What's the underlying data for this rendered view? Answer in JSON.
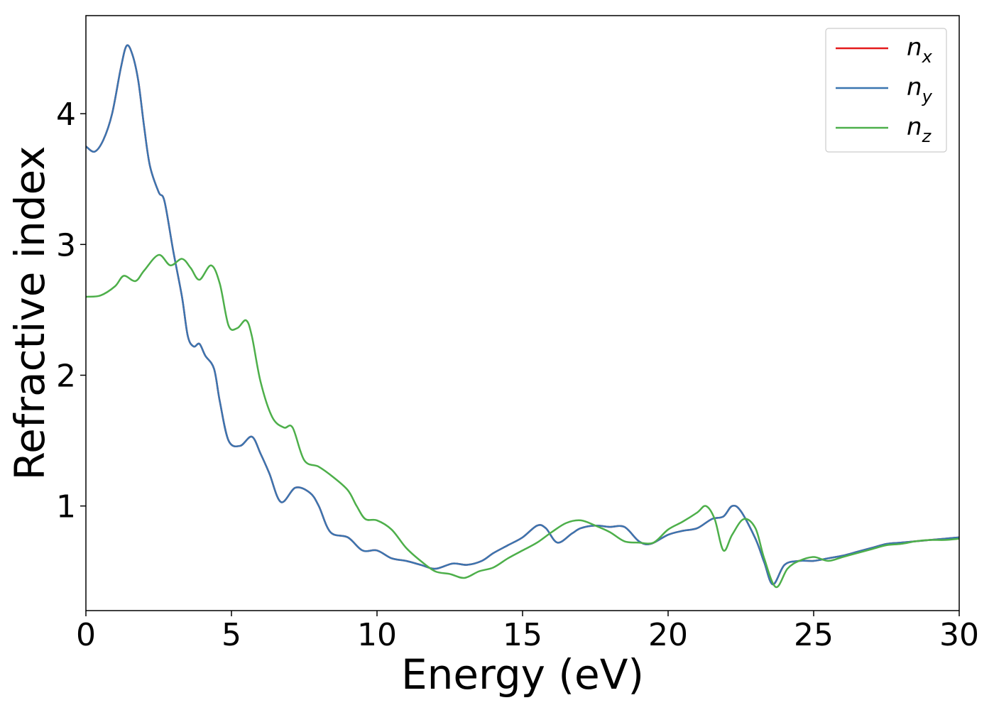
{
  "chart_data": {
    "type": "line",
    "xlabel": "Energy (eV)",
    "ylabel": "Refractive index",
    "xlim": [
      0,
      30
    ],
    "ylim": [
      0.2,
      4.75
    ],
    "xticks": [
      0,
      5,
      10,
      15,
      20,
      25,
      30
    ],
    "xtick_labels": [
      "0",
      "5",
      "10",
      "15",
      "20",
      "25",
      "30"
    ],
    "yticks": [
      1,
      2,
      3,
      4
    ],
    "ytick_labels": [
      "1",
      "2",
      "3",
      "4"
    ],
    "grid": false,
    "legend_position": "top-right",
    "series": [
      {
        "name": "n_x",
        "legend_base": "n",
        "legend_sub": "x",
        "color": "#e41a1c",
        "points": [
          [
            0,
            3.75
          ],
          [
            0.3,
            3.71
          ],
          [
            0.6,
            3.8
          ],
          [
            0.9,
            4.0
          ],
          [
            1.2,
            4.35
          ],
          [
            1.4,
            4.52
          ],
          [
            1.6,
            4.45
          ],
          [
            1.8,
            4.25
          ],
          [
            2.0,
            3.9
          ],
          [
            2.2,
            3.6
          ],
          [
            2.5,
            3.4
          ],
          [
            2.7,
            3.33
          ],
          [
            3.0,
            2.95
          ],
          [
            3.3,
            2.6
          ],
          [
            3.5,
            2.3
          ],
          [
            3.7,
            2.22
          ],
          [
            3.9,
            2.24
          ],
          [
            4.1,
            2.15
          ],
          [
            4.4,
            2.05
          ],
          [
            4.6,
            1.8
          ],
          [
            4.9,
            1.5
          ],
          [
            5.3,
            1.46
          ],
          [
            5.7,
            1.53
          ],
          [
            6.0,
            1.4
          ],
          [
            6.3,
            1.25
          ],
          [
            6.7,
            1.03
          ],
          [
            7.2,
            1.14
          ],
          [
            7.7,
            1.1
          ],
          [
            8.0,
            1.0
          ],
          [
            8.4,
            0.8
          ],
          [
            9.0,
            0.76
          ],
          [
            9.5,
            0.66
          ],
          [
            10.0,
            0.66
          ],
          [
            10.5,
            0.6
          ],
          [
            11.0,
            0.58
          ],
          [
            11.5,
            0.55
          ],
          [
            12.0,
            0.52
          ],
          [
            12.6,
            0.56
          ],
          [
            13.1,
            0.55
          ],
          [
            13.6,
            0.58
          ],
          [
            14.0,
            0.64
          ],
          [
            14.5,
            0.7
          ],
          [
            15.0,
            0.76
          ],
          [
            15.5,
            0.85
          ],
          [
            15.8,
            0.83
          ],
          [
            16.2,
            0.72
          ],
          [
            16.7,
            0.79
          ],
          [
            17.0,
            0.83
          ],
          [
            17.5,
            0.85
          ],
          [
            18.0,
            0.84
          ],
          [
            18.5,
            0.84
          ],
          [
            19.0,
            0.73
          ],
          [
            19.4,
            0.71
          ],
          [
            20.0,
            0.78
          ],
          [
            20.5,
            0.81
          ],
          [
            21.0,
            0.83
          ],
          [
            21.5,
            0.9
          ],
          [
            21.9,
            0.92
          ],
          [
            22.2,
            1.0
          ],
          [
            22.5,
            0.96
          ],
          [
            23.0,
            0.75
          ],
          [
            23.3,
            0.57
          ],
          [
            23.6,
            0.4
          ],
          [
            24.0,
            0.55
          ],
          [
            24.5,
            0.58
          ],
          [
            25.0,
            0.58
          ],
          [
            25.5,
            0.6
          ],
          [
            26.0,
            0.62
          ],
          [
            26.5,
            0.65
          ],
          [
            27.0,
            0.68
          ],
          [
            27.5,
            0.71
          ],
          [
            28.0,
            0.72
          ],
          [
            28.5,
            0.73
          ],
          [
            29.0,
            0.74
          ],
          [
            29.5,
            0.75
          ],
          [
            30.0,
            0.76
          ]
        ]
      },
      {
        "name": "n_y",
        "legend_base": "n",
        "legend_sub": "y",
        "color": "#3a75b0",
        "points": [
          [
            0,
            3.75
          ],
          [
            0.3,
            3.71
          ],
          [
            0.6,
            3.8
          ],
          [
            0.9,
            4.0
          ],
          [
            1.2,
            4.35
          ],
          [
            1.4,
            4.52
          ],
          [
            1.6,
            4.45
          ],
          [
            1.8,
            4.25
          ],
          [
            2.0,
            3.9
          ],
          [
            2.2,
            3.6
          ],
          [
            2.5,
            3.4
          ],
          [
            2.7,
            3.33
          ],
          [
            3.0,
            2.95
          ],
          [
            3.3,
            2.6
          ],
          [
            3.5,
            2.3
          ],
          [
            3.7,
            2.22
          ],
          [
            3.9,
            2.24
          ],
          [
            4.1,
            2.15
          ],
          [
            4.4,
            2.05
          ],
          [
            4.6,
            1.8
          ],
          [
            4.9,
            1.5
          ],
          [
            5.3,
            1.46
          ],
          [
            5.7,
            1.53
          ],
          [
            6.0,
            1.4
          ],
          [
            6.3,
            1.25
          ],
          [
            6.7,
            1.03
          ],
          [
            7.2,
            1.14
          ],
          [
            7.7,
            1.1
          ],
          [
            8.0,
            1.0
          ],
          [
            8.4,
            0.8
          ],
          [
            9.0,
            0.76
          ],
          [
            9.5,
            0.66
          ],
          [
            10.0,
            0.66
          ],
          [
            10.5,
            0.6
          ],
          [
            11.0,
            0.58
          ],
          [
            11.5,
            0.55
          ],
          [
            12.0,
            0.52
          ],
          [
            12.6,
            0.56
          ],
          [
            13.1,
            0.55
          ],
          [
            13.6,
            0.58
          ],
          [
            14.0,
            0.64
          ],
          [
            14.5,
            0.7
          ],
          [
            15.0,
            0.76
          ],
          [
            15.5,
            0.85
          ],
          [
            15.8,
            0.83
          ],
          [
            16.2,
            0.72
          ],
          [
            16.7,
            0.79
          ],
          [
            17.0,
            0.83
          ],
          [
            17.5,
            0.85
          ],
          [
            18.0,
            0.84
          ],
          [
            18.5,
            0.84
          ],
          [
            19.0,
            0.73
          ],
          [
            19.4,
            0.71
          ],
          [
            20.0,
            0.78
          ],
          [
            20.5,
            0.81
          ],
          [
            21.0,
            0.83
          ],
          [
            21.5,
            0.9
          ],
          [
            21.9,
            0.92
          ],
          [
            22.2,
            1.0
          ],
          [
            22.5,
            0.96
          ],
          [
            23.0,
            0.75
          ],
          [
            23.3,
            0.57
          ],
          [
            23.6,
            0.4
          ],
          [
            24.0,
            0.55
          ],
          [
            24.5,
            0.58
          ],
          [
            25.0,
            0.58
          ],
          [
            25.5,
            0.6
          ],
          [
            26.0,
            0.62
          ],
          [
            26.5,
            0.65
          ],
          [
            27.0,
            0.68
          ],
          [
            27.5,
            0.71
          ],
          [
            28.0,
            0.72
          ],
          [
            28.5,
            0.73
          ],
          [
            29.0,
            0.74
          ],
          [
            29.5,
            0.75
          ],
          [
            30.0,
            0.76
          ]
        ]
      },
      {
        "name": "n_z",
        "legend_base": "n",
        "legend_sub": "z",
        "color": "#4daf4a",
        "points": [
          [
            0,
            2.6
          ],
          [
            0.5,
            2.61
          ],
          [
            1.0,
            2.68
          ],
          [
            1.3,
            2.76
          ],
          [
            1.7,
            2.72
          ],
          [
            2.0,
            2.8
          ],
          [
            2.5,
            2.92
          ],
          [
            2.9,
            2.84
          ],
          [
            3.3,
            2.89
          ],
          [
            3.6,
            2.82
          ],
          [
            3.9,
            2.73
          ],
          [
            4.3,
            2.84
          ],
          [
            4.6,
            2.7
          ],
          [
            4.9,
            2.38
          ],
          [
            5.2,
            2.36
          ],
          [
            5.5,
            2.42
          ],
          [
            5.7,
            2.3
          ],
          [
            6.0,
            1.95
          ],
          [
            6.4,
            1.68
          ],
          [
            6.8,
            1.6
          ],
          [
            7.1,
            1.6
          ],
          [
            7.5,
            1.35
          ],
          [
            8.0,
            1.3
          ],
          [
            8.5,
            1.22
          ],
          [
            9.0,
            1.12
          ],
          [
            9.3,
            1.0
          ],
          [
            9.6,
            0.9
          ],
          [
            10.0,
            0.89
          ],
          [
            10.5,
            0.82
          ],
          [
            11.0,
            0.68
          ],
          [
            11.5,
            0.58
          ],
          [
            12.0,
            0.5
          ],
          [
            12.5,
            0.48
          ],
          [
            13.0,
            0.45
          ],
          [
            13.5,
            0.5
          ],
          [
            14.0,
            0.53
          ],
          [
            14.5,
            0.6
          ],
          [
            15.0,
            0.66
          ],
          [
            15.5,
            0.72
          ],
          [
            16.0,
            0.8
          ],
          [
            16.5,
            0.87
          ],
          [
            17.0,
            0.89
          ],
          [
            17.5,
            0.85
          ],
          [
            18.0,
            0.8
          ],
          [
            18.5,
            0.73
          ],
          [
            19.0,
            0.72
          ],
          [
            19.5,
            0.72
          ],
          [
            20.0,
            0.82
          ],
          [
            20.5,
            0.88
          ],
          [
            21.0,
            0.95
          ],
          [
            21.3,
            1.0
          ],
          [
            21.6,
            0.9
          ],
          [
            21.9,
            0.66
          ],
          [
            22.2,
            0.78
          ],
          [
            22.6,
            0.9
          ],
          [
            23.0,
            0.83
          ],
          [
            23.3,
            0.6
          ],
          [
            23.7,
            0.38
          ],
          [
            24.1,
            0.52
          ],
          [
            24.5,
            0.58
          ],
          [
            25.0,
            0.61
          ],
          [
            25.5,
            0.58
          ],
          [
            26.0,
            0.61
          ],
          [
            26.5,
            0.64
          ],
          [
            27.0,
            0.67
          ],
          [
            27.5,
            0.7
          ],
          [
            28.0,
            0.71
          ],
          [
            28.5,
            0.73
          ],
          [
            29.0,
            0.74
          ],
          [
            29.5,
            0.74
          ],
          [
            30.0,
            0.75
          ]
        ]
      }
    ]
  }
}
